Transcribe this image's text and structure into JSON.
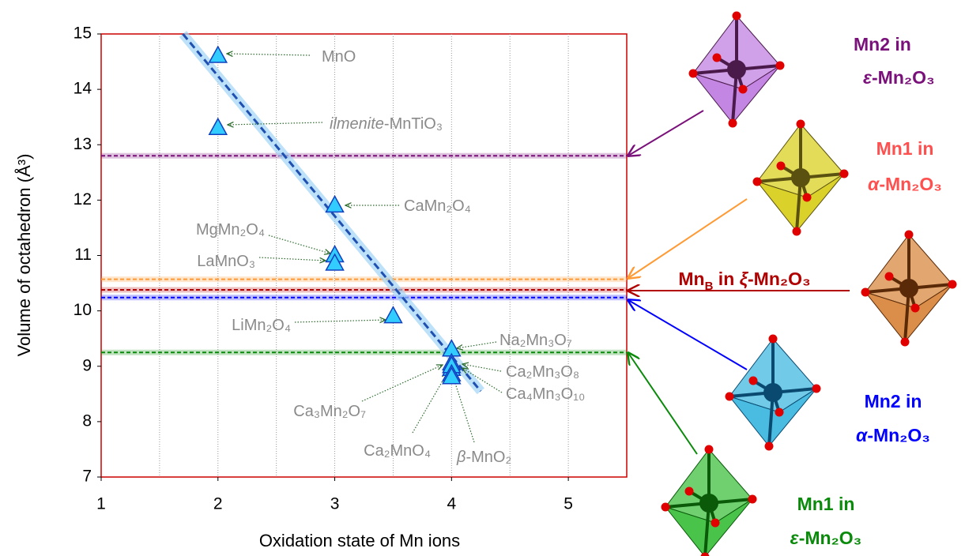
{
  "chart_data": {
    "type": "scatter",
    "xlabel": "Oxidation state of Mn ions",
    "ylabel": "Volume of octahedron (Å³)",
    "xlim": [
      1,
      5.5
    ],
    "xticks": [
      1,
      2,
      3,
      4,
      5
    ],
    "xgrid_lines": [
      1.5,
      2,
      2.5,
      3,
      3.5,
      4,
      4.5,
      5
    ],
    "ylim": [
      7,
      15
    ],
    "yticks": [
      7,
      8,
      9,
      10,
      11,
      12,
      13,
      14,
      15
    ],
    "series": [
      {
        "color": "#33ccff",
        "edge": "#1040c0",
        "x": [
          2,
          2,
          3,
          3,
          3,
          3.5,
          4,
          4,
          4,
          4,
          4,
          4
        ],
        "y": [
          14.6,
          13.3,
          11.9,
          11.0,
          10.85,
          9.9,
          9.3,
          9.05,
          8.95,
          9.0,
          8.85,
          8.8
        ],
        "point_labels": [
          [
            "MnO"
          ],
          [
            {
              "text": "ilmenite",
              "style": "italic"
            },
            "-MnTiO₃"
          ],
          [
            "CaMn₂O₄"
          ],
          [
            "MgMn₂O₄"
          ],
          [
            "LaMnO₃"
          ],
          [
            "LiMn₂O₄"
          ],
          [
            "Na₂Mn₃O₇"
          ],
          [
            "Ca₂Mn₃O₈"
          ],
          [
            "Ca₄Mn₃O₁₀"
          ],
          [
            "Ca₃Mn₂O₇"
          ],
          [
            "Ca₂MnO₄"
          ],
          [
            {
              "text": "β",
              "style": "italic"
            },
            "-MnO₂"
          ]
        ]
      }
    ],
    "trend": {
      "color": "#1f4fb0",
      "x": [
        1.7,
        4.25
      ],
      "y": [
        15,
        8.55
      ]
    },
    "reference_lines": [
      {
        "y": 12.8,
        "color": "#7a107a",
        "label": [
          [
            "Mn2 in"
          ],
          [
            {
              "text": "ε",
              "style": "italic"
            },
            "-Mn₂O₃"
          ]
        ]
      },
      {
        "y": 10.57,
        "color": "#ff9933",
        "label": [
          [
            "Mn1 in"
          ],
          [
            {
              "text": "α",
              "style": "italic"
            },
            "-Mn₂O₃"
          ]
        ],
        "label_color": "#ff5050"
      },
      {
        "y": 10.38,
        "color": "#b00000",
        "label": [
          [
            "Mn",
            {
              "text": "B",
              "style": "sub"
            },
            " in ",
            {
              "text": "ξ",
              "style": "italic"
            },
            "-Mn₂O₃"
          ]
        ]
      },
      {
        "y": 10.24,
        "color": "#0000ff",
        "label": [
          [
            "Mn2 in"
          ],
          [
            {
              "text": "α",
              "style": "italic"
            },
            "-Mn₂O₃"
          ]
        ]
      },
      {
        "y": 9.25,
        "color": "#0a8a0a",
        "label": [
          [
            "Mn1 in"
          ],
          [
            {
              "text": "ε",
              "style": "italic"
            },
            "-Mn₂O₃"
          ]
        ]
      }
    ]
  }
}
